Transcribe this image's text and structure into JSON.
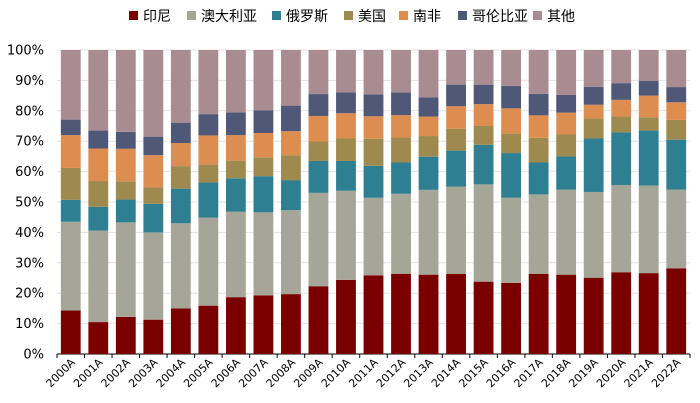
{
  "chart_data": {
    "type": "bar",
    "stacked": true,
    "percent": true,
    "title": "",
    "xlabel": "",
    "ylabel": "",
    "ylim": [
      0,
      100
    ],
    "y_ticks": [
      "0%",
      "10%",
      "20%",
      "30%",
      "40%",
      "50%",
      "60%",
      "70%",
      "80%",
      "90%",
      "100%"
    ],
    "legend_position": "top",
    "categories": [
      "2000A",
      "2001A",
      "2002A",
      "2003A",
      "2004A",
      "2005A",
      "2006A",
      "2007A",
      "2008A",
      "2009A",
      "2010A",
      "2011A",
      "2012A",
      "2013A",
      "2014A",
      "2015A",
      "2016A",
      "2017A",
      "2018A",
      "2019A",
      "2020A",
      "2021A",
      "2022A"
    ],
    "series": [
      {
        "name": "印尼",
        "color": "#7a0000",
        "values": [
          14.3,
          10.5,
          12.2,
          11.3,
          15.0,
          15.9,
          18.7,
          19.3,
          19.7,
          22.3,
          24.4,
          25.9,
          26.4,
          26.1,
          26.4,
          23.8,
          23.4,
          26.4,
          26.1,
          25.1,
          26.9,
          26.6,
          28.2
        ]
      },
      {
        "name": "澳大利亚",
        "color": "#a6a698",
        "values": [
          29.2,
          30.1,
          31.1,
          28.7,
          28.0,
          29.0,
          28.1,
          27.3,
          27.6,
          30.7,
          29.3,
          25.5,
          26.3,
          27.9,
          28.7,
          32.0,
          28.0,
          26.1,
          28.0,
          28.2,
          28.7,
          28.8,
          25.9
        ]
      },
      {
        "name": "俄罗斯",
        "color": "#2e7f91",
        "values": [
          7.2,
          7.8,
          7.5,
          9.4,
          11.4,
          11.5,
          11.0,
          11.9,
          9.9,
          10.5,
          9.8,
          10.5,
          10.3,
          10.9,
          11.8,
          13.0,
          14.7,
          10.5,
          10.9,
          17.6,
          17.3,
          18.1,
          16.4
        ]
      },
      {
        "name": "美国",
        "color": "#9e8a4e",
        "values": [
          10.5,
          8.5,
          6.0,
          5.4,
          7.4,
          6.0,
          5.8,
          6.2,
          8.2,
          6.4,
          7.4,
          8.9,
          8.2,
          6.8,
          7.2,
          6.2,
          6.4,
          8.1,
          7.2,
          6.6,
          5.2,
          4.4,
          6.5
        ]
      },
      {
        "name": "南非",
        "color": "#dd8d50",
        "values": [
          10.8,
          10.7,
          10.7,
          10.6,
          7.6,
          9.5,
          8.4,
          8.0,
          7.9,
          8.4,
          8.3,
          7.4,
          7.4,
          6.4,
          7.4,
          7.2,
          8.3,
          7.4,
          7.2,
          4.5,
          5.5,
          7.1,
          5.8
        ]
      },
      {
        "name": "哥伦比亚",
        "color": "#4f5876",
        "values": [
          5.1,
          5.9,
          5.6,
          6.1,
          6.7,
          7.0,
          7.5,
          7.5,
          8.4,
          7.2,
          6.9,
          7.2,
          7.4,
          6.3,
          7.1,
          6.4,
          7.4,
          7.1,
          5.8,
          5.9,
          5.5,
          4.9,
          5.0
        ]
      },
      {
        "name": "其他",
        "color": "#a98c91",
        "values": [
          22.9,
          26.5,
          26.9,
          28.5,
          23.9,
          21.1,
          20.5,
          19.8,
          18.3,
          14.5,
          13.9,
          14.6,
          14.0,
          15.6,
          11.4,
          11.4,
          11.8,
          14.4,
          14.8,
          12.1,
          10.9,
          10.1,
          12.2
        ]
      }
    ]
  }
}
